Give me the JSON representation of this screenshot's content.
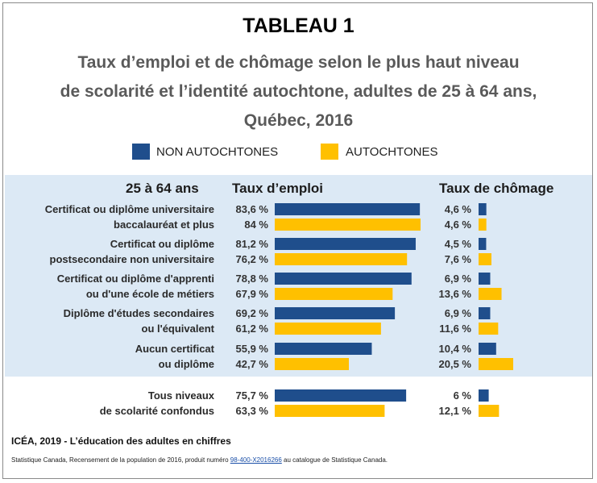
{
  "title": "TABLEAU 1",
  "subtitle_lines": [
    "Taux d’emploi et de chômage selon le plus haut niveau",
    "de scolarité et l’identité autochtone, adultes de 25 à 64 ans,",
    "Québec, 2016"
  ],
  "colors": {
    "non_autochtones": "#1f4e8c",
    "autochtones": "#ffc000",
    "panel": "#dce9f5"
  },
  "legend": [
    {
      "label": "NON AUTOCHTONES",
      "color": "#1f4e8c"
    },
    {
      "label": "AUTOCHTONES",
      "color": "#ffc000"
    }
  ],
  "column_headers": {
    "age": "25 à 64 ans",
    "emploi": "Taux d’emploi",
    "chomage": "Taux de chômage"
  },
  "chart_data": {
    "type": "bar",
    "orientation": "horizontal",
    "categories": [
      [
        "Certificat ou diplôme universitaire",
        "baccalauréat et plus"
      ],
      [
        "Certificat ou diplôme",
        "postsecondaire non universitaire"
      ],
      [
        "Certificat ou diplôme d'apprenti",
        "ou d'une école de métiers"
      ],
      [
        "Diplôme d'études secondaires",
        "ou l'équivalent"
      ],
      [
        "Aucun certificat",
        "ou diplôme"
      ],
      [
        "Tous niveaux",
        "de scolarité confondus"
      ]
    ],
    "emploi": {
      "non_autochtones": [
        83.6,
        81.2,
        78.8,
        69.2,
        55.9,
        75.7
      ],
      "autochtones": [
        84,
        76.2,
        67.9,
        61.2,
        42.7,
        63.3
      ],
      "labels_non": [
        "83,6 %",
        "81,2 %",
        "78,8 %",
        "69,2 %",
        "55,9 %",
        "75,7 %"
      ],
      "labels_aut": [
        "84 %",
        "76,2 %",
        "67,9 %",
        "61,2 %",
        "42,7 %",
        "63,3 %"
      ]
    },
    "chomage": {
      "non_autochtones": [
        4.6,
        4.5,
        6.9,
        6.9,
        10.4,
        6
      ],
      "autochtones": [
        4.6,
        7.6,
        13.6,
        11.6,
        20.5,
        12.1
      ],
      "labels_non": [
        "4,6 %",
        "4,5 %",
        "6,9 %",
        "6,9 %",
        "10,4 %",
        "6 %"
      ],
      "labels_aut": [
        "4,6 %",
        "7,6 %",
        "13,6 %",
        "11,6 %",
        "20,5 %",
        "12,1 %"
      ]
    }
  },
  "footer": {
    "credit": "ICÉA, 2019 - L’éducation des adultes en chiffres",
    "source_before": "Statistique Canada, Recensement de la population de 2016, produit numéro ",
    "source_link": "98-400-X2016266",
    "source_after": " au catalogue de Statistique Canada."
  }
}
